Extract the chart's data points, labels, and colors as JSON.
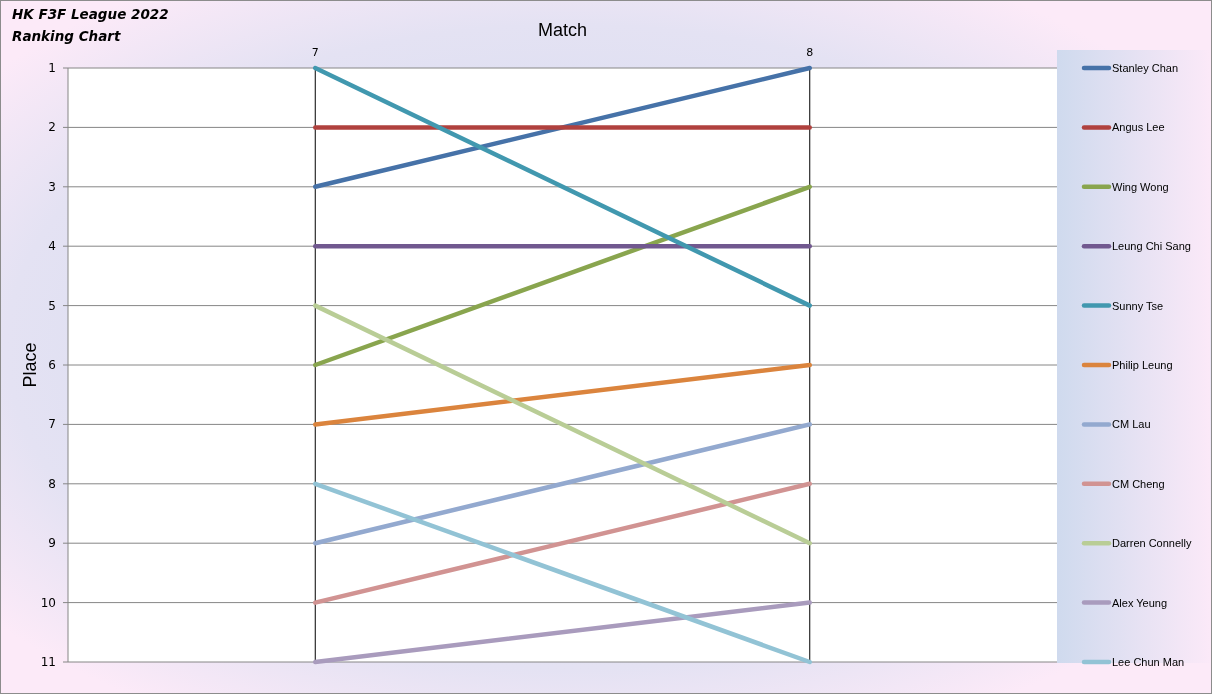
{
  "chart_data": {
    "type": "line",
    "title": "HK F3F League 2022",
    "subtitle": "Ranking Chart",
    "xlabel": "Match",
    "ylabel": "Place",
    "categories": [
      "7",
      "8"
    ],
    "ylim": [
      11,
      1
    ],
    "yticks": [
      1,
      2,
      3,
      4,
      5,
      6,
      7,
      8,
      9,
      10,
      11
    ],
    "grid": true,
    "legend": "right",
    "series": [
      {
        "name": "Stanley Chan",
        "color": "#4672a8",
        "values": [
          3,
          1
        ]
      },
      {
        "name": "Angus Lee",
        "color": "#b0413e",
        "values": [
          2,
          2
        ]
      },
      {
        "name": "Wing Wong",
        "color": "#89a54e",
        "values": [
          6,
          3
        ]
      },
      {
        "name": "Leung Chi Sang",
        "color": "#71588f",
        "values": [
          4,
          4
        ]
      },
      {
        "name": "Sunny Tse",
        "color": "#4198af",
        "values": [
          1,
          5
        ]
      },
      {
        "name": "Philip Leung",
        "color": "#db843d",
        "values": [
          7,
          6
        ]
      },
      {
        "name": "CM Lau",
        "color": "#93a9cf",
        "values": [
          9,
          7
        ]
      },
      {
        "name": "CM Cheng",
        "color": "#d19392",
        "values": [
          10,
          8
        ]
      },
      {
        "name": "Darren Connelly",
        "color": "#b9cd96",
        "values": [
          5,
          9
        ]
      },
      {
        "name": "Alex Yeung",
        "color": "#a99bbd",
        "values": [
          11,
          10
        ]
      },
      {
        "name": "Lee Chun Man",
        "color": "#92c3d5",
        "values": [
          8,
          11
        ]
      }
    ]
  }
}
